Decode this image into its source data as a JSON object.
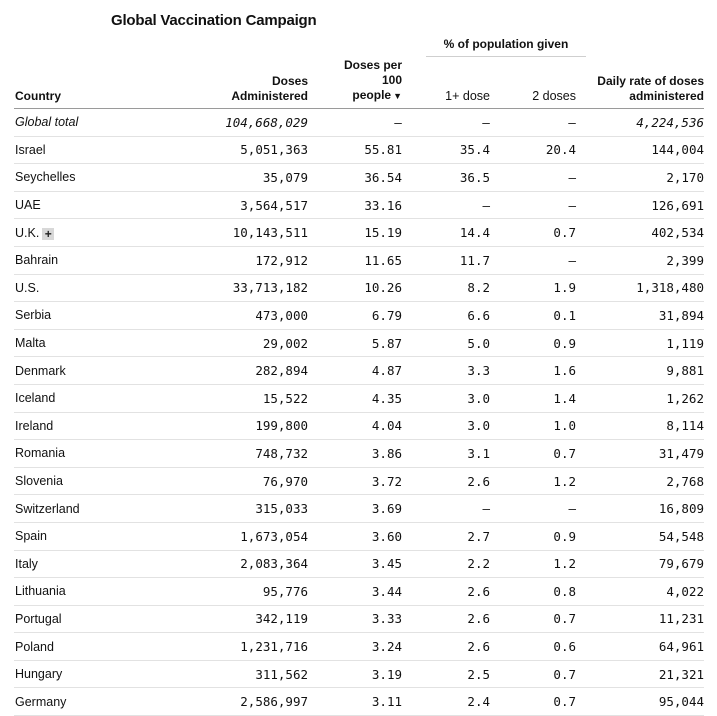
{
  "title": "Global Vaccination Campaign",
  "group_header": "% of population given",
  "columns": {
    "country": "Country",
    "doses": [
      "Doses",
      "Administered"
    ],
    "per100": [
      "Doses per",
      "100",
      "people"
    ],
    "one_dose": "1+ dose",
    "two_doses": "2 doses",
    "daily": [
      "Daily rate of doses",
      "administered"
    ]
  },
  "sort_icon": "triangle-down",
  "expand_icon": "+",
  "rows": [
    {
      "country": "Global total",
      "doses": "104,668,029",
      "per100": "–",
      "one": "–",
      "two": "–",
      "daily": "4,224,536"
    },
    {
      "country": "Israel",
      "doses": "5,051,363",
      "per100": "55.81",
      "one": "35.4",
      "two": "20.4",
      "daily": "144,004"
    },
    {
      "country": "Seychelles",
      "doses": "35,079",
      "per100": "36.54",
      "one": "36.5",
      "two": "–",
      "daily": "2,170"
    },
    {
      "country": "UAE",
      "doses": "3,564,517",
      "per100": "33.16",
      "one": "–",
      "two": "–",
      "daily": "126,691"
    },
    {
      "country": "U.K.",
      "doses": "10,143,511",
      "per100": "15.19",
      "one": "14.4",
      "two": "0.7",
      "daily": "402,534"
    },
    {
      "country": "Bahrain",
      "doses": "172,912",
      "per100": "11.65",
      "one": "11.7",
      "two": "–",
      "daily": "2,399"
    },
    {
      "country": "U.S.",
      "doses": "33,713,182",
      "per100": "10.26",
      "one": "8.2",
      "two": "1.9",
      "daily": "1,318,480"
    },
    {
      "country": "Serbia",
      "doses": "473,000",
      "per100": "6.79",
      "one": "6.6",
      "two": "0.1",
      "daily": "31,894"
    },
    {
      "country": "Malta",
      "doses": "29,002",
      "per100": "5.87",
      "one": "5.0",
      "two": "0.9",
      "daily": "1,119"
    },
    {
      "country": "Denmark",
      "doses": "282,894",
      "per100": "4.87",
      "one": "3.3",
      "two": "1.6",
      "daily": "9,881"
    },
    {
      "country": "Iceland",
      "doses": "15,522",
      "per100": "4.35",
      "one": "3.0",
      "two": "1.4",
      "daily": "1,262"
    },
    {
      "country": "Ireland",
      "doses": "199,800",
      "per100": "4.04",
      "one": "3.0",
      "two": "1.0",
      "daily": "8,114"
    },
    {
      "country": "Romania",
      "doses": "748,732",
      "per100": "3.86",
      "one": "3.1",
      "two": "0.7",
      "daily": "31,479"
    },
    {
      "country": "Slovenia",
      "doses": "76,970",
      "per100": "3.72",
      "one": "2.6",
      "two": "1.2",
      "daily": "2,768"
    },
    {
      "country": "Switzerland",
      "doses": "315,033",
      "per100": "3.69",
      "one": "–",
      "two": "–",
      "daily": "16,809"
    },
    {
      "country": "Spain",
      "doses": "1,673,054",
      "per100": "3.60",
      "one": "2.7",
      "two": "0.9",
      "daily": "54,548"
    },
    {
      "country": "Italy",
      "doses": "2,083,364",
      "per100": "3.45",
      "one": "2.2",
      "two": "1.2",
      "daily": "79,679"
    },
    {
      "country": "Lithuania",
      "doses": "95,776",
      "per100": "3.44",
      "one": "2.6",
      "two": "0.8",
      "daily": "4,022"
    },
    {
      "country": "Portugal",
      "doses": "342,119",
      "per100": "3.33",
      "one": "2.6",
      "two": "0.7",
      "daily": "11,231"
    },
    {
      "country": "Poland",
      "doses": "1,231,716",
      "per100": "3.24",
      "one": "2.6",
      "two": "0.6",
      "daily": "64,961"
    },
    {
      "country": "Hungary",
      "doses": "311,562",
      "per100": "3.19",
      "one": "2.5",
      "two": "0.7",
      "daily": "21,321"
    },
    {
      "country": "Germany",
      "doses": "2,586,997",
      "per100": "3.11",
      "one": "2.4",
      "two": "0.7",
      "daily": "95,044"
    }
  ]
}
